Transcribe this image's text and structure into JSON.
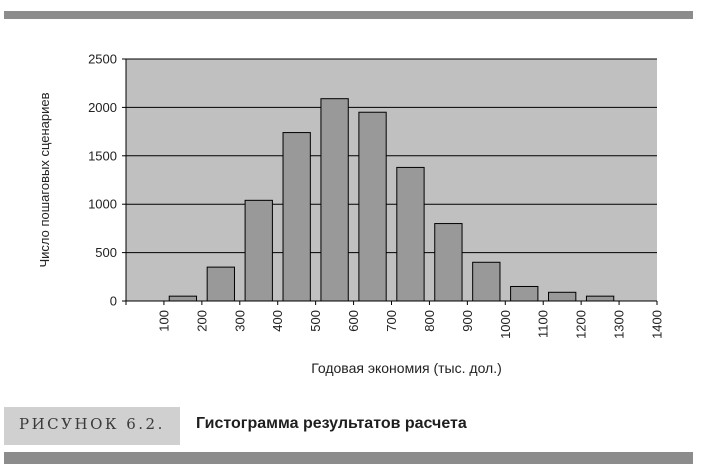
{
  "caption": {
    "label": "РИСУНОК 6.2.",
    "title": "Гистограмма результатов расчета"
  },
  "colors": {
    "bar_fill": "#999999",
    "bar_stroke": "#000000",
    "plot_background": "#c0c0c0",
    "grid": "#000000",
    "rule": "#8c8c8c",
    "caption_box": "#d0d0d0"
  },
  "chart_data": {
    "type": "bar",
    "title": "",
    "xlabel": "Годовая экономия (тыс. дол.)",
    "ylabel": "Число пошаговых сценариев",
    "categories": [
      "100",
      "200",
      "300",
      "400",
      "500",
      "600",
      "700",
      "800",
      "900",
      "1000",
      "1100",
      "1200",
      "1300",
      "1400"
    ],
    "values": [
      0,
      50,
      350,
      1040,
      1740,
      2090,
      1950,
      1380,
      800,
      400,
      150,
      90,
      50,
      0
    ],
    "ylim": [
      0,
      2500
    ],
    "yticks": [
      "0",
      "500",
      "1000",
      "1500",
      "2000",
      "2500"
    ],
    "grid": true,
    "legend": "none"
  }
}
